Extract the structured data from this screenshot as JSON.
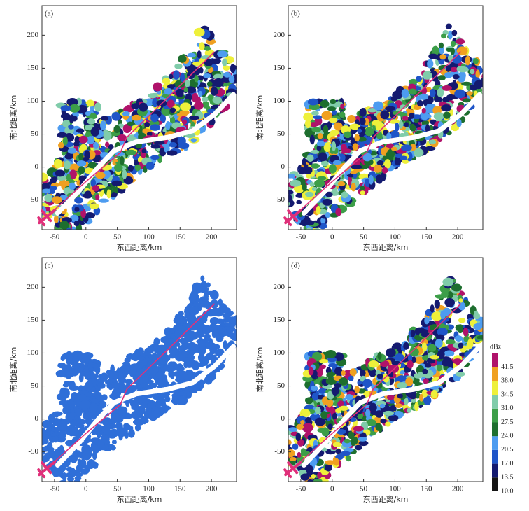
{
  "chart_data": [
    {
      "type": "radar",
      "label": "(a)",
      "xlabel": "东西距离/km",
      "ylabel": "南北距离/km",
      "xlim": [
        -70,
        240
      ],
      "ylim": [
        -95,
        245
      ],
      "xticks": [
        -50,
        0,
        50,
        100,
        150,
        200
      ],
      "yticks": [
        -50,
        0,
        50,
        100,
        150,
        200
      ],
      "track": {
        "x": [
          -62,
          0,
          55,
          65,
          130,
          205
        ],
        "y": [
          -75,
          -22,
          22,
          45,
          105,
          175
        ],
        "color": "#e0307a"
      }
    },
    {
      "type": "radar",
      "label": "(b)",
      "xlabel": "东西距离/km",
      "ylabel": "南北距离/km",
      "xlim": [
        -70,
        240
      ],
      "ylim": [
        -95,
        245
      ],
      "xticks": [
        -50,
        0,
        50,
        100,
        150,
        200
      ],
      "yticks": [
        -50,
        0,
        50,
        100,
        150,
        200
      ],
      "track": {
        "x": [
          -62,
          0,
          55,
          65,
          130,
          205
        ],
        "y": [
          -75,
          -22,
          22,
          45,
          105,
          175
        ],
        "color": "#e0307a"
      }
    },
    {
      "type": "radar",
      "label": "(c)",
      "xlabel": "东西距离/km",
      "ylabel": "南北距离/km",
      "xlim": [
        -70,
        240
      ],
      "ylim": [
        -95,
        245
      ],
      "xticks": [
        -50,
        0,
        50,
        100,
        150,
        200
      ],
      "yticks": [
        -50,
        0,
        50,
        100,
        150,
        200
      ],
      "echo_color": "#2f6fd8",
      "track": {
        "x": [
          -62,
          0,
          55,
          65,
          130,
          205
        ],
        "y": [
          -75,
          -22,
          22,
          45,
          105,
          175
        ],
        "color": "#e0307a"
      }
    },
    {
      "type": "radar",
      "label": "(d)",
      "xlabel": "东西距离/km",
      "ylabel": "南北距离/km",
      "xlim": [
        -70,
        240
      ],
      "ylim": [
        -95,
        245
      ],
      "xticks": [
        -50,
        0,
        50,
        100,
        150,
        200
      ],
      "yticks": [
        -50,
        0,
        50,
        100,
        150,
        200
      ],
      "track": {
        "x": [
          -62,
          0,
          55,
          65,
          130,
          205
        ],
        "y": [
          -75,
          -22,
          22,
          45,
          105,
          175
        ],
        "color": "#e0307a"
      },
      "colorbar": {
        "unit": "dBz",
        "ticks": [
          {
            "value": 10,
            "label": "10.0"
          },
          13.5,
          {
            "value": 17,
            "label": "17.0"
          },
          20.5,
          {
            "value": 24,
            "label": "24.0"
          },
          27.5,
          {
            "value": 31,
            "label": "31.0"
          },
          34.5,
          {
            "value": 38,
            "label": "38.0"
          },
          41.5
        ],
        "colors": [
          "#151515",
          "#141a70",
          "#1f55c8",
          "#4d9cf0",
          "#1d6e2e",
          "#3c9e48",
          "#80ccaa",
          "#eef03a",
          "#f0a020",
          "#b0126a"
        ]
      }
    }
  ]
}
